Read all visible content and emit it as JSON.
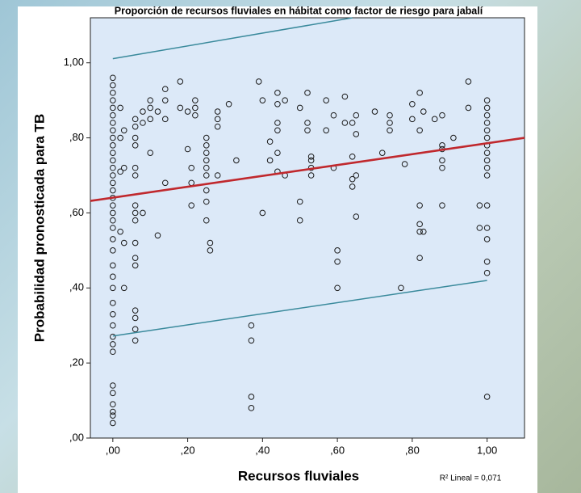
{
  "chart_data": {
    "type": "scatter",
    "title": "Proporción de recursos fluviales en hábitat como factor de riesgo para jabalí",
    "x_label": "Recursos fluviales",
    "y_label": "Probabilidad pronosticada para TB",
    "annotation": "R² Lineal = 0,071",
    "background": "#dce9f8",
    "xlim": [
      -0.06,
      1.1
    ],
    "ylim": [
      0,
      1.12
    ],
    "xticks": [
      {
        "value": 0,
        "label": ",00"
      },
      {
        "value": 0.2,
        "label": ",20"
      },
      {
        "value": 0.4,
        "label": ",40"
      },
      {
        "value": 0.6,
        "label": ",60"
      },
      {
        "value": 0.8,
        "label": ",80"
      },
      {
        "value": 1,
        "label": "1,00"
      }
    ],
    "yticks": [
      {
        "value": 0,
        "label": ",00"
      },
      {
        "value": 0.2,
        "label": ",20"
      },
      {
        "value": 0.4,
        "label": ",40"
      },
      {
        "value": 0.6,
        "label": ",60"
      },
      {
        "value": 0.8,
        "label": ",80"
      },
      {
        "value": 1,
        "label": "1,00"
      }
    ],
    "series": [
      {
        "type": "scatter",
        "color": "#1a1a1a",
        "x": [
          0,
          0,
          0,
          0,
          0,
          0,
          0,
          0,
          0,
          0,
          0,
          0,
          0,
          0,
          0,
          0,
          0,
          0,
          0,
          0,
          0,
          0,
          0,
          0,
          0,
          0,
          0,
          0,
          0,
          0,
          0,
          0,
          0,
          0,
          0,
          0,
          0,
          0,
          0.02,
          0.02,
          0.02,
          0.02,
          0.03,
          0.03,
          0.03,
          0.03,
          0.06,
          0.06,
          0.06,
          0.06,
          0.06,
          0.06,
          0.06,
          0.06,
          0.06,
          0.06,
          0.06,
          0.06,
          0.06,
          0.06,
          0.06,
          0.06,
          0.08,
          0.08,
          0.08,
          0.1,
          0.1,
          0.1,
          0.1,
          0.12,
          0.12,
          0.14,
          0.14,
          0.14,
          0.14,
          0.18,
          0.18,
          0.2,
          0.2,
          0.21,
          0.21,
          0.21,
          0.22,
          0.22,
          0.22,
          0.25,
          0.25,
          0.25,
          0.25,
          0.25,
          0.25,
          0.25,
          0.25,
          0.25,
          0.26,
          0.26,
          0.28,
          0.28,
          0.28,
          0.28,
          0.31,
          0.33,
          0.37,
          0.37,
          0.37,
          0.37,
          0.39,
          0.4,
          0.4,
          0.42,
          0.42,
          0.44,
          0.44,
          0.44,
          0.44,
          0.44,
          0.44,
          0.46,
          0.46,
          0.5,
          0.5,
          0.5,
          0.52,
          0.52,
          0.52,
          0.53,
          0.53,
          0.53,
          0.53,
          0.57,
          0.57,
          0.59,
          0.59,
          0.6,
          0.6,
          0.6,
          0.62,
          0.62,
          0.64,
          0.64,
          0.64,
          0.64,
          0.65,
          0.65,
          0.65,
          0.65,
          0.7,
          0.72,
          0.74,
          0.74,
          0.74,
          0.77,
          0.78,
          0.8,
          0.8,
          0.82,
          0.82,
          0.82,
          0.82,
          0.82,
          0.82,
          0.83,
          0.83,
          0.86,
          0.88,
          0.88,
          0.88,
          0.88,
          0.88,
          0.88,
          0.91,
          0.95,
          0.95,
          0.98,
          0.98,
          1,
          1,
          1,
          1,
          1,
          1,
          1,
          1,
          1,
          1,
          1,
          1,
          1,
          1,
          1,
          1,
          1
        ],
        "values": [
          0.04,
          0.06,
          0.07,
          0.09,
          0.12,
          0.14,
          0.23,
          0.25,
          0.27,
          0.3,
          0.33,
          0.36,
          0.4,
          0.43,
          0.46,
          0.5,
          0.53,
          0.56,
          0.58,
          0.6,
          0.62,
          0.64,
          0.66,
          0.68,
          0.7,
          0.72,
          0.74,
          0.76,
          0.78,
          0.8,
          0.82,
          0.84,
          0.86,
          0.88,
          0.9,
          0.92,
          0.94,
          0.96,
          0.55,
          0.71,
          0.8,
          0.88,
          0.4,
          0.52,
          0.72,
          0.82,
          0.26,
          0.29,
          0.32,
          0.34,
          0.46,
          0.48,
          0.52,
          0.58,
          0.6,
          0.62,
          0.7,
          0.72,
          0.78,
          0.8,
          0.83,
          0.85,
          0.6,
          0.84,
          0.87,
          0.76,
          0.85,
          0.88,
          0.9,
          0.54,
          0.87,
          0.68,
          0.85,
          0.9,
          0.93,
          0.88,
          0.95,
          0.77,
          0.87,
          0.62,
          0.68,
          0.72,
          0.86,
          0.88,
          0.9,
          0.58,
          0.63,
          0.66,
          0.7,
          0.72,
          0.74,
          0.76,
          0.78,
          0.8,
          0.5,
          0.52,
          0.7,
          0.83,
          0.85,
          0.87,
          0.89,
          0.74,
          0.08,
          0.11,
          0.26,
          0.3,
          0.95,
          0.6,
          0.9,
          0.74,
          0.79,
          0.71,
          0.76,
          0.82,
          0.84,
          0.89,
          0.92,
          0.7,
          0.9,
          0.58,
          0.63,
          0.88,
          0.82,
          0.84,
          0.92,
          0.7,
          0.72,
          0.74,
          0.75,
          0.82,
          0.9,
          0.72,
          0.86,
          0.4,
          0.47,
          0.5,
          0.84,
          0.91,
          0.67,
          0.69,
          0.75,
          0.84,
          0.59,
          0.7,
          0.81,
          0.86,
          0.87,
          0.76,
          0.82,
          0.84,
          0.86,
          0.4,
          0.73,
          0.85,
          0.89,
          0.48,
          0.55,
          0.57,
          0.62,
          0.82,
          0.92,
          0.55,
          0.87,
          0.85,
          0.62,
          0.72,
          0.74,
          0.77,
          0.78,
          0.86,
          0.8,
          0.88,
          0.95,
          0.56,
          0.62,
          0.11,
          0.44,
          0.47,
          0.53,
          0.56,
          0.62,
          0.7,
          0.72,
          0.74,
          0.76,
          0.78,
          0.8,
          0.82,
          0.84,
          0.86,
          0.88,
          0.9
        ]
      },
      {
        "type": "line",
        "color": "#c0282d",
        "x": [
          -0.06,
          1.1
        ],
        "values": [
          0.632,
          0.8
        ]
      },
      {
        "type": "line",
        "color": "#3a8a9c",
        "x": [
          0,
          0.64
        ],
        "values": [
          1.011,
          1.12
        ]
      },
      {
        "type": "line",
        "color": "#3a8a9c",
        "x": [
          0,
          1
        ],
        "values": [
          0.272,
          0.42
        ]
      }
    ]
  }
}
